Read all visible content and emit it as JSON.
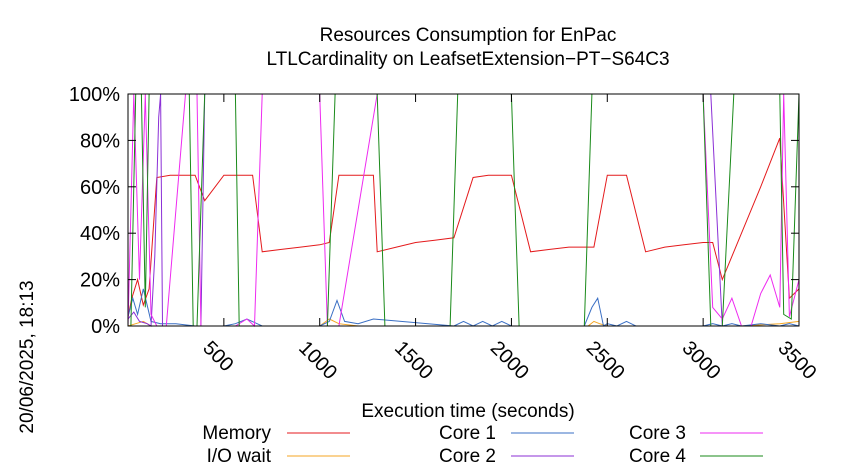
{
  "chart_data": {
    "type": "line",
    "title": "Resources Consumption for EnPac",
    "subtitle": "LTLCardinality on LeafsetExtension−PT−S64C3",
    "xlabel": "Execution time (seconds)",
    "ylabel": "",
    "xlim": [
      0,
      3500
    ],
    "ylim": [
      0,
      100
    ],
    "x_ticks": [
      "500",
      "1000",
      "1500",
      "2000",
      "2500",
      "3000",
      "3500"
    ],
    "x_tick_values": [
      500,
      1000,
      1500,
      2000,
      2500,
      3000,
      3500
    ],
    "y_ticks": [
      "0%",
      "20%",
      "40%",
      "60%",
      "80%",
      "100%"
    ],
    "y_tick_values": [
      0,
      20,
      40,
      60,
      80,
      100
    ],
    "grid": false,
    "legend_placement": "bottom",
    "timestamp": "20/06/2025, 18:13",
    "series": [
      {
        "name": "Memory",
        "color": "#e41a1c",
        "x": [
          0,
          20,
          50,
          80,
          110,
          150,
          220,
          300,
          350,
          400,
          500,
          650,
          700,
          800,
          900,
          1000,
          1050,
          1100,
          1180,
          1280,
          1300,
          1400,
          1500,
          1600,
          1700,
          1800,
          1880,
          2000,
          2100,
          2200,
          2300,
          2400,
          2430,
          2500,
          2600,
          2700,
          2800,
          2900,
          3000,
          3050,
          3100,
          3200,
          3300,
          3400,
          3450,
          3500
        ],
        "y": [
          4,
          12,
          20,
          9,
          16,
          64,
          65,
          65,
          65,
          54,
          65,
          65,
          32,
          33,
          34,
          35,
          36,
          65,
          65,
          65,
          32,
          34,
          36,
          37,
          38,
          64,
          65,
          65,
          32,
          33,
          34,
          34,
          34,
          65,
          65,
          32,
          34,
          35,
          36,
          36,
          20,
          40,
          60,
          81,
          12,
          16
        ]
      },
      {
        "name": "I/O wait",
        "color": "#f5a623",
        "x": [
          0,
          40,
          80,
          120,
          200,
          500,
          1000,
          1050,
          1100,
          1200,
          1500,
          2000,
          2400,
          2430,
          2460,
          2500,
          3000,
          3200,
          3400,
          3500
        ],
        "y": [
          0,
          1,
          2,
          0,
          0,
          0,
          0,
          3,
          1,
          0,
          0,
          0,
          0,
          2,
          1,
          0,
          0,
          0,
          1,
          2
        ]
      },
      {
        "name": "Core 1",
        "color": "#3a6fc4",
        "x": [
          0,
          25,
          50,
          80,
          120,
          170,
          250,
          350,
          450,
          500,
          560,
          620,
          700,
          1000,
          1050,
          1090,
          1130,
          1200,
          1280,
          1700,
          1750,
          1800,
          1850,
          1900,
          1950,
          2000,
          2380,
          2420,
          2450,
          2480,
          2500,
          2550,
          2600,
          2650,
          3000,
          3050,
          3100,
          3150,
          3200,
          3300,
          3400,
          3450,
          3500
        ],
        "y": [
          4,
          12,
          5,
          16,
          2,
          1,
          1,
          0,
          0,
          0,
          1,
          3,
          0,
          0,
          2,
          11,
          2,
          1,
          3,
          0,
          2,
          0,
          2,
          0,
          2,
          0,
          0,
          8,
          12,
          0,
          1,
          0,
          2,
          0,
          0,
          1,
          0,
          1,
          0,
          1,
          0,
          1,
          0
        ]
      },
      {
        "name": "Core 2",
        "color": "#8b2fd6",
        "x": [
          0,
          30,
          60,
          100,
          120,
          140,
          160,
          170,
          180,
          200,
          300,
          380,
          400,
          420,
          440,
          460,
          500,
          600,
          650,
          670,
          700,
          1000,
          1050,
          1100,
          1200,
          1250,
          1300,
          1700,
          1750,
          2000,
          2050,
          2400,
          2450,
          2500,
          2600,
          3000,
          3040,
          3100,
          3150,
          3200,
          3400,
          3500
        ],
        "y": [
          3,
          6,
          2,
          1,
          0,
          30,
          90,
          100,
          0,
          0,
          0,
          0,
          100,
          100,
          100,
          100,
          100,
          100,
          100,
          100,
          100,
          100,
          100,
          100,
          100,
          100,
          100,
          100,
          100,
          100,
          100,
          100,
          100,
          100,
          100,
          100,
          100,
          0,
          0,
          0,
          0,
          0
        ]
      },
      {
        "name": "Core 3",
        "color": "#ee2af0",
        "x": [
          0,
          30,
          60,
          90,
          120,
          150,
          200,
          300,
          360,
          380,
          420,
          500,
          560,
          620,
          660,
          700,
          1000,
          1040,
          1100,
          1300,
          1350,
          1700,
          1750,
          2000,
          2350,
          2400,
          2450,
          2500,
          2600,
          2650,
          3000,
          3050,
          3100,
          3150,
          3200,
          3250,
          3300,
          3350,
          3400,
          3420,
          3450,
          3500
        ],
        "y": [
          0,
          100,
          20,
          100,
          5,
          0,
          0,
          100,
          100,
          0,
          0,
          0,
          0,
          3,
          0,
          100,
          100,
          0,
          0,
          100,
          100,
          100,
          100,
          100,
          100,
          100,
          100,
          100,
          100,
          100,
          100,
          8,
          3,
          12,
          0,
          0,
          14,
          22,
          8,
          100,
          4,
          20
        ]
      },
      {
        "name": "Core 4",
        "color": "#1a8a1a",
        "x": [
          0,
          15,
          40,
          70,
          90,
          110,
          130,
          150,
          200,
          320,
          340,
          360,
          400,
          440,
          560,
          580,
          640,
          700,
          1000,
          1040,
          1080,
          1200,
          1300,
          1340,
          1680,
          1720,
          2000,
          2040,
          2380,
          2420,
          2500,
          2600,
          3000,
          3040,
          3100,
          3160,
          3200,
          3350,
          3400,
          3420,
          3460,
          3500
        ],
        "y": [
          0,
          0,
          100,
          100,
          8,
          100,
          100,
          100,
          100,
          100,
          0,
          0,
          100,
          100,
          100,
          0,
          0,
          0,
          0,
          0,
          100,
          100,
          100,
          0,
          0,
          100,
          100,
          0,
          0,
          100,
          100,
          100,
          100,
          0,
          0,
          100,
          100,
          100,
          100,
          5,
          3,
          100
        ]
      }
    ]
  }
}
